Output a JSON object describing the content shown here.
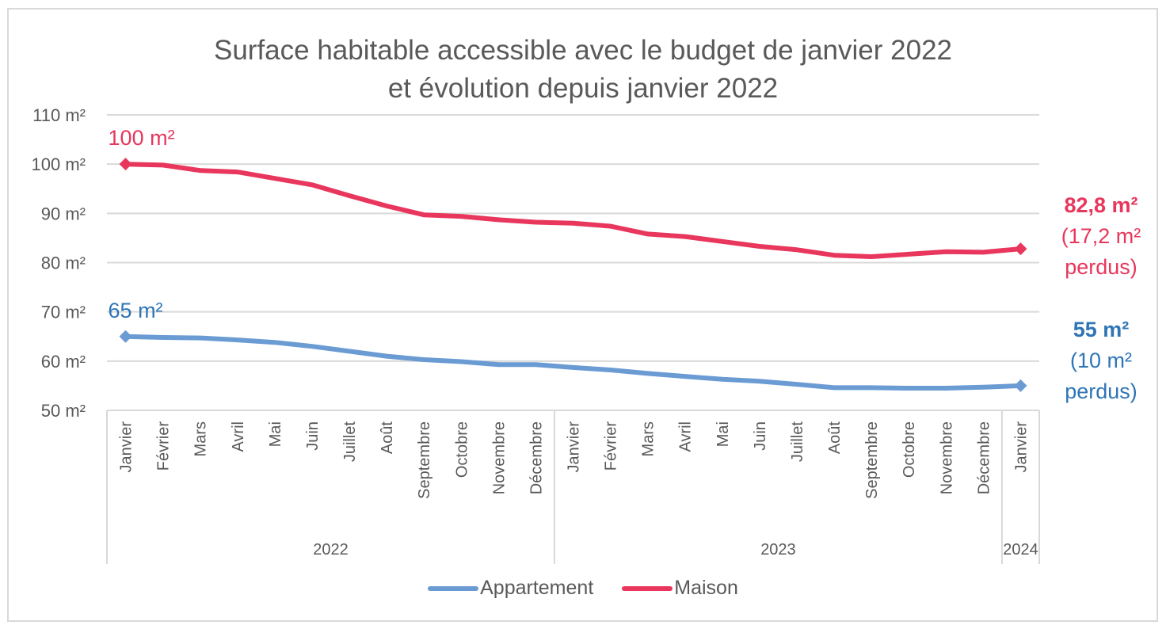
{
  "chart_data": {
    "type": "line",
    "title": "Surface habitable accessible avec le budget de janvier 2022 et évolution depuis janvier 2022",
    "title_lines": [
      "Surface habitable accessible avec le budget de janvier 2022",
      "et évolution depuis janvier 2022"
    ],
    "xlabel": "",
    "ylabel": "",
    "ylim": [
      50,
      110
    ],
    "yticks": [
      110,
      100,
      90,
      80,
      70,
      60,
      50
    ],
    "ytick_labels": [
      "110 m²",
      "100 m²",
      "90 m²",
      "80 m²",
      "70 m²",
      "60 m²",
      "50 m²"
    ],
    "grid": true,
    "legend_position": "bottom",
    "categories": [
      "Janvier",
      "Février",
      "Mars",
      "Avril",
      "Mai",
      "Juin",
      "Juillet",
      "Août",
      "Septembre",
      "Octobre",
      "Novembre",
      "Décembre",
      "Janvier",
      "Février",
      "Mars",
      "Avril",
      "Mai",
      "Juin",
      "Juillet",
      "Août",
      "Septembre",
      "Octobre",
      "Novembre",
      "Décembre",
      "Janvier"
    ],
    "year_groups": [
      {
        "label": "2022",
        "count": 12
      },
      {
        "label": "2023",
        "count": 12
      },
      {
        "label": "2024",
        "count": 1
      }
    ],
    "series": [
      {
        "name": "Appartement",
        "color": "#6a9bd3",
        "values": [
          65,
          64.8,
          64.7,
          64.3,
          63.8,
          63.0,
          62.0,
          61.0,
          60.3,
          59.9,
          59.3,
          59.3,
          58.7,
          58.2,
          57.5,
          56.9,
          56.3,
          55.9,
          55.3,
          54.6,
          54.6,
          54.5,
          54.5,
          54.7,
          55.0
        ],
        "start_label": "65 m²",
        "end_label_lines": [
          "55 m²",
          "(10 m²",
          "perdus)"
        ],
        "label_color": "#2e75b6"
      },
      {
        "name": "Maison",
        "color": "#e8365c",
        "values": [
          100,
          99.8,
          98.7,
          98.4,
          97.1,
          95.8,
          93.6,
          91.5,
          89.7,
          89.4,
          88.7,
          88.2,
          88.0,
          87.4,
          85.8,
          85.3,
          84.3,
          83.3,
          82.6,
          81.5,
          81.2,
          81.7,
          82.2,
          82.1,
          82.8
        ],
        "start_label": "100 m²",
        "end_label_lines": [
          "82,8 m²",
          "(17,2 m²",
          "perdus)"
        ],
        "label_color": "#e8365c"
      }
    ]
  }
}
